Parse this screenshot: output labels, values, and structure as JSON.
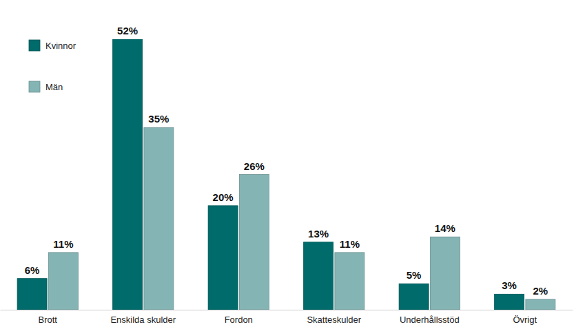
{
  "chart_data": {
    "type": "bar",
    "categories": [
      "Brott",
      "Enskilda skulder",
      "Fordon",
      "Skatteskulder",
      "Underhållsstöd",
      "Övrigt"
    ],
    "series": [
      {
        "name": "Kvinnor",
        "color": "#006b6b",
        "values": [
          6,
          52,
          20,
          13,
          5,
          3
        ],
        "value_labels": [
          "6%",
          "52%",
          "20%",
          "13%",
          "5%",
          "3%"
        ]
      },
      {
        "name": "Män",
        "color": "#84b4b4",
        "values": [
          11,
          35,
          26,
          11,
          14,
          2
        ],
        "value_labels": [
          "11%",
          "35%",
          "26%",
          "11%",
          "14%",
          "2%"
        ]
      }
    ],
    "ylim": [
      0,
      52
    ],
    "data_labels": true,
    "tick_labels": "x",
    "legend": "upper left",
    "grid": false
  }
}
